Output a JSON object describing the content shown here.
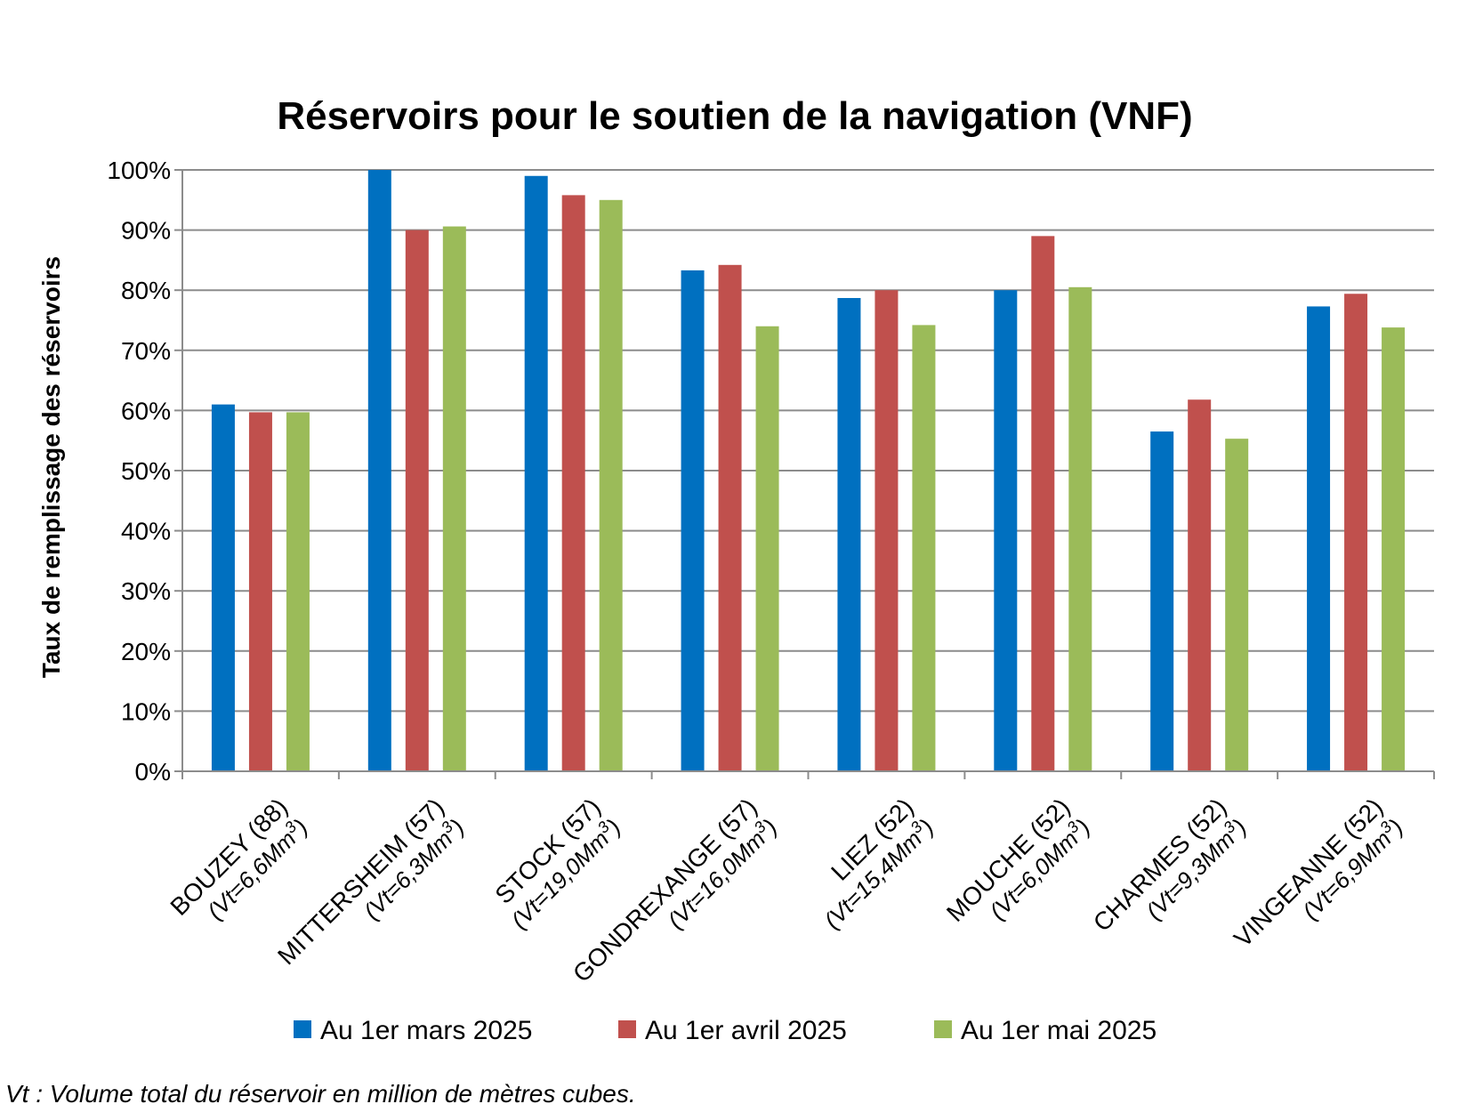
{
  "chart_data": {
    "type": "bar",
    "title": "Réservoirs pour le soutien de la navigation (VNF)",
    "ylabel": "Taux de remplissage des réservoirs",
    "xlabel": "",
    "ylim": [
      0,
      100
    ],
    "ytick_step": 10,
    "ytick_suffix": "%",
    "grid": true,
    "legend_position": "bottom",
    "categories": [
      {
        "name": "BOUZEY (88)",
        "volume": "(Vt=6,6Mm",
        "sup": "3",
        "close": ")"
      },
      {
        "name": "MITTERSHEIM (57)",
        "volume": "(Vt=6,3Mm",
        "sup": "3",
        "close": ")"
      },
      {
        "name": "STOCK (57)",
        "volume": "(Vt=19,0Mm",
        "sup": "3",
        "close": ")"
      },
      {
        "name": "GONDREXANGE (57)",
        "volume": "(Vt=16,0Mm",
        "sup": "3",
        "close": ")"
      },
      {
        "name": "LIEZ (52)",
        "volume": "(Vt=15,4Mm",
        "sup": "3",
        "close": ")"
      },
      {
        "name": "MOUCHE (52)",
        "volume": "(Vt=6,0Mm",
        "sup": "3",
        "close": ")"
      },
      {
        "name": "CHARMES (52)",
        "volume": "(Vt=9,3Mm",
        "sup": "3",
        "close": ")"
      },
      {
        "name": "VINGEANNE (52)",
        "volume": "(Vt=6,9Mm",
        "sup": "3",
        "close": ")"
      }
    ],
    "series": [
      {
        "name": "Au 1er mars 2025",
        "color": "#0070C0",
        "values": [
          61,
          100,
          99,
          83.3,
          78.7,
          80,
          56.5,
          77.3
        ]
      },
      {
        "name": "Au 1er avril 2025",
        "color": "#C0504D",
        "values": [
          59.7,
          90,
          95.8,
          84.2,
          80,
          89,
          61.8,
          79.4
        ]
      },
      {
        "name": "Au 1er mai 2025",
        "color": "#9BBB59",
        "values": [
          59.7,
          90.6,
          95,
          74,
          74.2,
          80.5,
          55.3,
          73.8
        ]
      }
    ]
  },
  "footnote": "Vt : Volume total du réservoir en million de mètres cubes."
}
